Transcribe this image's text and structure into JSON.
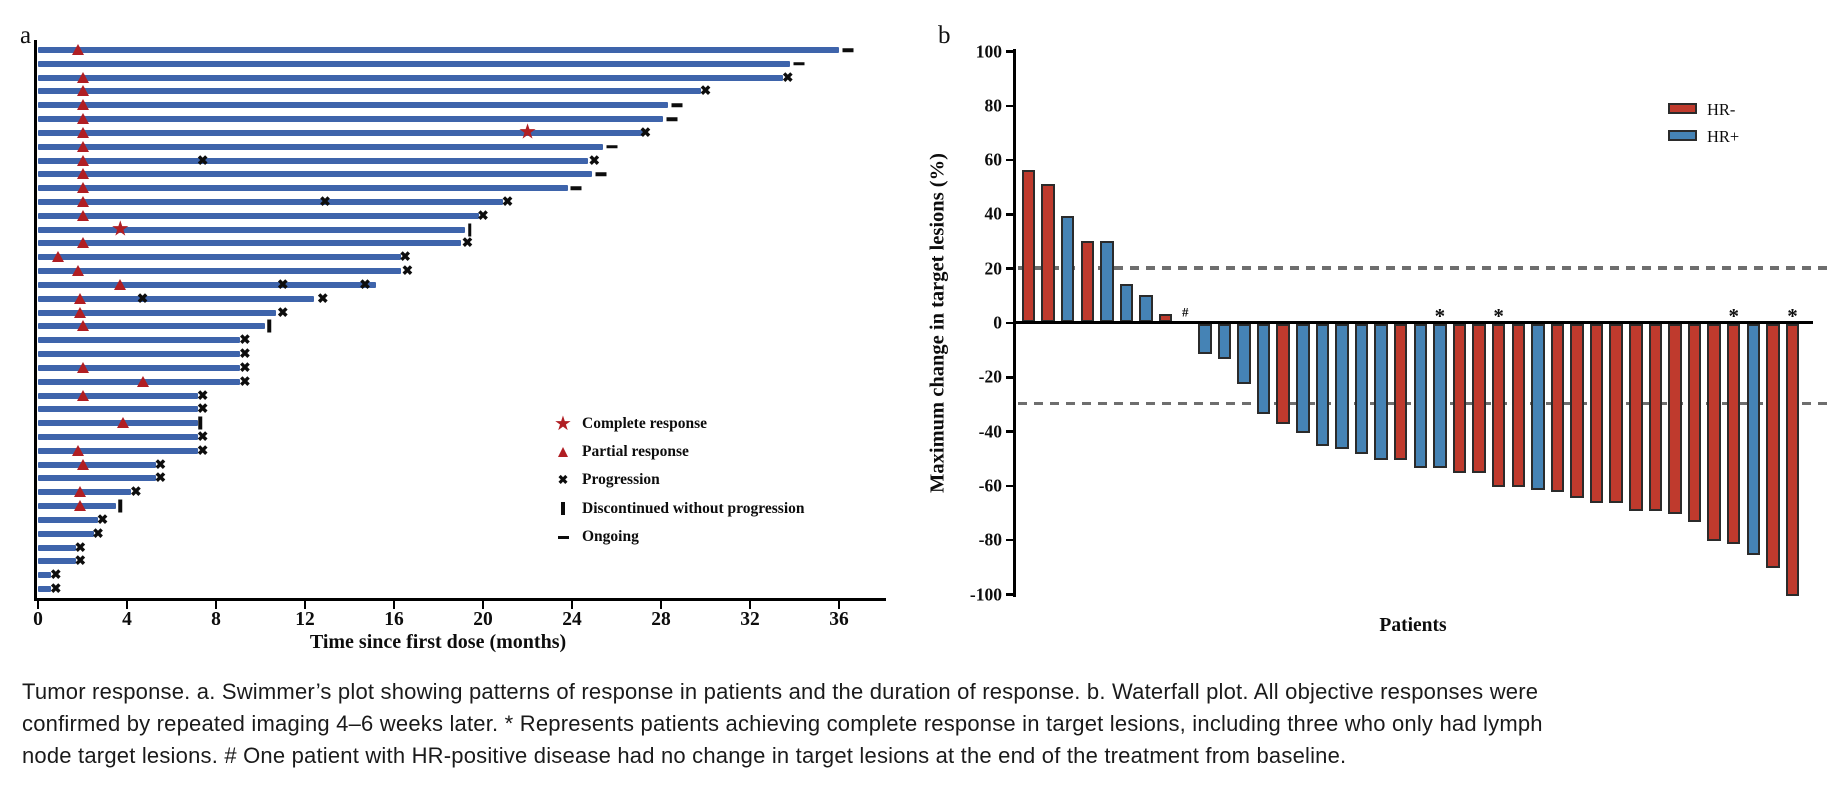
{
  "caption": {
    "lines": [
      "Tumor response. a. Swimmer’s plot showing patterns of response in patients and the duration of response. b. Waterfall plot. All objective responses were",
      "confirmed by repeated imaging 4–6 weeks later. * Represents patients achieving complete response in target lesions, including three who only had lymph",
      "node target lesions. # One patient with HR-positive disease had no change in target lesions at the end of the treatment from baseline."
    ]
  },
  "colors": {
    "swimmer_bar_blue": "#3E64AB",
    "response_marker_red": "#B01E23",
    "marker_black": "#0d0d0d",
    "waterfall_red": "#BF3A2D",
    "waterfall_blue": "#4583B5",
    "bar_border": "#2B2B2B",
    "threshold_dash_gray": "#6E6E6E"
  },
  "chart_data": [
    {
      "type": "bar",
      "subtype": "swimmer",
      "panel_label": "a",
      "x_axis": {
        "title": "Time since first dose (months)",
        "ticks": [
          0,
          4,
          8,
          12,
          16,
          20,
          24,
          28,
          32,
          36
        ],
        "xlim": [
          0,
          38
        ]
      },
      "legend": [
        {
          "marker": "cr",
          "label": "Complete response"
        },
        {
          "marker": "pr",
          "label": "Partial response"
        },
        {
          "marker": "x",
          "label": "Progression"
        },
        {
          "marker": "bar",
          "label": "Discontinued without progression"
        },
        {
          "marker": "dash",
          "label": "Ongoing"
        }
      ],
      "marker_meanings": {
        "cr": "complete-response-star",
        "pr": "partial-response-triangle",
        "x": "progression-cross",
        "bar": "discontinued-tick",
        "dash": "ongoing-dash"
      },
      "patients": [
        {
          "months": 36.0,
          "marks": [
            [
              "pr",
              1.8
            ],
            [
              "dash",
              36.4
            ]
          ]
        },
        {
          "months": 33.8,
          "marks": [
            [
              "dash",
              34.2
            ]
          ]
        },
        {
          "months": 33.5,
          "marks": [
            [
              "pr",
              2.0
            ],
            [
              "x",
              33.7
            ]
          ]
        },
        {
          "months": 29.8,
          "marks": [
            [
              "pr",
              2.0
            ],
            [
              "x",
              30.0
            ]
          ]
        },
        {
          "months": 28.3,
          "marks": [
            [
              "pr",
              2.0
            ],
            [
              "dash",
              28.7
            ]
          ]
        },
        {
          "months": 28.1,
          "marks": [
            [
              "pr",
              2.0
            ],
            [
              "dash",
              28.5
            ]
          ]
        },
        {
          "months": 27.2,
          "marks": [
            [
              "pr",
              2.0
            ],
            [
              "cr",
              22.0
            ],
            [
              "x",
              27.3
            ]
          ]
        },
        {
          "months": 25.4,
          "marks": [
            [
              "pr",
              2.0
            ],
            [
              "dash",
              25.8
            ]
          ]
        },
        {
          "months": 24.7,
          "marks": [
            [
              "pr",
              2.0
            ],
            [
              "x",
              7.4
            ],
            [
              "x",
              25.0
            ]
          ]
        },
        {
          "months": 24.9,
          "marks": [
            [
              "pr",
              2.0
            ],
            [
              "dash",
              25.3
            ]
          ]
        },
        {
          "months": 23.8,
          "marks": [
            [
              "pr",
              2.0
            ],
            [
              "dash",
              24.2
            ]
          ]
        },
        {
          "months": 20.9,
          "marks": [
            [
              "pr",
              2.0
            ],
            [
              "x",
              12.9
            ],
            [
              "x",
              21.1
            ]
          ]
        },
        {
          "months": 19.8,
          "marks": [
            [
              "pr",
              2.0
            ],
            [
              "x",
              20.0
            ]
          ]
        },
        {
          "months": 19.2,
          "marks": [
            [
              "cr",
              3.7
            ],
            [
              "bar",
              19.4
            ]
          ]
        },
        {
          "months": 19.0,
          "marks": [
            [
              "pr",
              2.0
            ],
            [
              "x",
              19.3
            ]
          ]
        },
        {
          "months": 16.3,
          "marks": [
            [
              "pr",
              0.9
            ],
            [
              "x",
              16.5
            ]
          ]
        },
        {
          "months": 16.3,
          "marks": [
            [
              "pr",
              1.8
            ],
            [
              "x",
              16.6
            ]
          ]
        },
        {
          "months": 15.2,
          "marks": [
            [
              "pr",
              3.7
            ],
            [
              "x",
              11.0
            ],
            [
              "x",
              14.7
            ]
          ]
        },
        {
          "months": 12.4,
          "marks": [
            [
              "pr",
              1.9
            ],
            [
              "x",
              4.7
            ],
            [
              "x",
              12.8
            ]
          ]
        },
        {
          "months": 10.7,
          "marks": [
            [
              "pr",
              1.9
            ],
            [
              "x",
              11.0
            ]
          ]
        },
        {
          "months": 10.2,
          "marks": [
            [
              "pr",
              2.0
            ],
            [
              "bar",
              10.4
            ]
          ]
        },
        {
          "months": 9.1,
          "marks": [
            [
              "x",
              9.3
            ]
          ]
        },
        {
          "months": 9.1,
          "marks": [
            [
              "x",
              9.3
            ]
          ]
        },
        {
          "months": 9.1,
          "marks": [
            [
              "pr",
              2.0
            ],
            [
              "x",
              9.3
            ]
          ]
        },
        {
          "months": 9.1,
          "marks": [
            [
              "pr",
              4.7
            ],
            [
              "x",
              9.3
            ]
          ]
        },
        {
          "months": 7.2,
          "marks": [
            [
              "pr",
              2.0
            ],
            [
              "x",
              7.4
            ]
          ]
        },
        {
          "months": 7.2,
          "marks": [
            [
              "x",
              7.4
            ]
          ]
        },
        {
          "months": 7.2,
          "marks": [
            [
              "pr",
              3.8
            ],
            [
              "bar",
              7.3
            ]
          ]
        },
        {
          "months": 7.2,
          "marks": [
            [
              "x",
              7.4
            ]
          ]
        },
        {
          "months": 7.2,
          "marks": [
            [
              "pr",
              1.8
            ],
            [
              "x",
              7.4
            ]
          ]
        },
        {
          "months": 5.3,
          "marks": [
            [
              "pr",
              2.0
            ],
            [
              "x",
              5.5
            ]
          ]
        },
        {
          "months": 5.3,
          "marks": [
            [
              "x",
              5.5
            ]
          ]
        },
        {
          "months": 4.2,
          "marks": [
            [
              "pr",
              1.9
            ],
            [
              "x",
              4.4
            ]
          ]
        },
        {
          "months": 3.5,
          "marks": [
            [
              "pr",
              1.9
            ],
            [
              "bar",
              3.7
            ]
          ]
        },
        {
          "months": 2.7,
          "marks": [
            [
              "x",
              2.9
            ]
          ]
        },
        {
          "months": 2.5,
          "marks": [
            [
              "x",
              2.7
            ]
          ]
        },
        {
          "months": 1.7,
          "marks": [
            [
              "x",
              1.9
            ]
          ]
        },
        {
          "months": 1.7,
          "marks": [
            [
              "x",
              1.9
            ]
          ]
        },
        {
          "months": 0.6,
          "marks": [
            [
              "x",
              0.8
            ]
          ]
        },
        {
          "months": 0.6,
          "marks": [
            [
              "x",
              0.8
            ]
          ]
        }
      ]
    },
    {
      "type": "bar",
      "subtype": "waterfall",
      "panel_label": "b",
      "y_axis": {
        "title": "Maximum change in target lesions (%)",
        "ticks": [
          100,
          80,
          60,
          40,
          20,
          0,
          -20,
          -40,
          -60,
          -80,
          -100
        ],
        "ylim": [
          -100,
          100
        ]
      },
      "x_axis": {
        "title": "Patients"
      },
      "thresholds": [
        20,
        -30
      ],
      "legend": [
        {
          "label": "HR-",
          "color": "#BF3A2D"
        },
        {
          "label": "HR+",
          "color": "#4583B5"
        }
      ],
      "patients": [
        {
          "value": 56,
          "group": "HR-"
        },
        {
          "value": 51,
          "group": "HR-"
        },
        {
          "value": 39,
          "group": "HR+"
        },
        {
          "value": 30,
          "group": "HR-"
        },
        {
          "value": 30,
          "group": "HR+"
        },
        {
          "value": 14,
          "group": "HR+"
        },
        {
          "value": 10,
          "group": "HR+"
        },
        {
          "value": 3,
          "group": "HR-"
        },
        {
          "value": 0,
          "group": "HR+",
          "flag": "#"
        },
        {
          "value": -11,
          "group": "HR+"
        },
        {
          "value": -13,
          "group": "HR+"
        },
        {
          "value": -22,
          "group": "HR+"
        },
        {
          "value": -33,
          "group": "HR+"
        },
        {
          "value": -37,
          "group": "HR-"
        },
        {
          "value": -40,
          "group": "HR+"
        },
        {
          "value": -45,
          "group": "HR+"
        },
        {
          "value": -46,
          "group": "HR+"
        },
        {
          "value": -48,
          "group": "HR+"
        },
        {
          "value": -50,
          "group": "HR+"
        },
        {
          "value": -50,
          "group": "HR-"
        },
        {
          "value": -53,
          "group": "HR+"
        },
        {
          "value": -53,
          "group": "HR+",
          "flag": "*"
        },
        {
          "value": -55,
          "group": "HR-"
        },
        {
          "value": -55,
          "group": "HR-"
        },
        {
          "value": -60,
          "group": "HR-",
          "flag": "*"
        },
        {
          "value": -60,
          "group": "HR-"
        },
        {
          "value": -61,
          "group": "HR+"
        },
        {
          "value": -62,
          "group": "HR-"
        },
        {
          "value": -64,
          "group": "HR-"
        },
        {
          "value": -66,
          "group": "HR-"
        },
        {
          "value": -66,
          "group": "HR-"
        },
        {
          "value": -69,
          "group": "HR-"
        },
        {
          "value": -69,
          "group": "HR-"
        },
        {
          "value": -70,
          "group": "HR-"
        },
        {
          "value": -73,
          "group": "HR-"
        },
        {
          "value": -80,
          "group": "HR-"
        },
        {
          "value": -81,
          "group": "HR-",
          "flag": "*"
        },
        {
          "value": -85,
          "group": "HR+"
        },
        {
          "value": -90,
          "group": "HR-"
        },
        {
          "value": -100,
          "group": "HR-",
          "flag": "*"
        }
      ]
    }
  ]
}
